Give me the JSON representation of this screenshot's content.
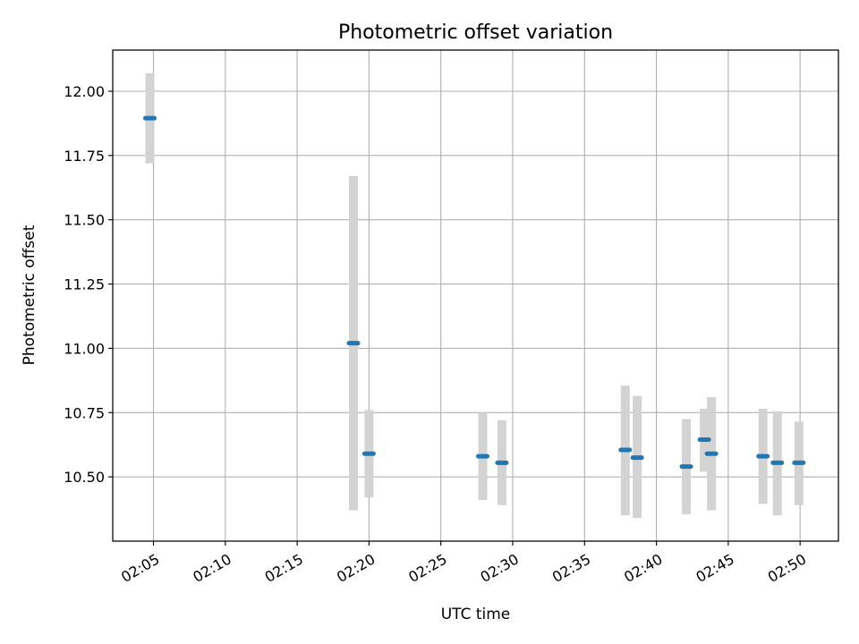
{
  "chart_data": {
    "type": "scatter",
    "title": "Photometric offset variation",
    "xlabel": "UTC time",
    "ylabel": "Photometric offset",
    "x_ticks": [
      "02:05",
      "02:10",
      "02:15",
      "02:20",
      "02:25",
      "02:30",
      "02:35",
      "02:40",
      "02:45",
      "02:50"
    ],
    "y_ticks": [
      "10.50",
      "10.75",
      "11.00",
      "11.25",
      "11.50",
      "11.75",
      "12.00"
    ],
    "xlim": [
      "02:02:10",
      "02:52:40"
    ],
    "ylim": [
      10.25,
      12.16
    ],
    "grid": true,
    "marker_color": "#1f77b4",
    "errorbar_color": "#d3d3d3",
    "points": [
      {
        "x": "02:04:45",
        "y": 11.895,
        "ylow": 11.72,
        "yhigh": 12.07
      },
      {
        "x": "02:18:55",
        "y": 11.02,
        "ylow": 10.37,
        "yhigh": 11.67
      },
      {
        "x": "02:20:00",
        "y": 10.59,
        "ylow": 10.42,
        "yhigh": 10.76
      },
      {
        "x": "02:27:55",
        "y": 10.58,
        "ylow": 10.41,
        "yhigh": 10.75
      },
      {
        "x": "02:29:15",
        "y": 10.555,
        "ylow": 10.39,
        "yhigh": 10.72
      },
      {
        "x": "02:37:50",
        "y": 10.605,
        "ylow": 10.35,
        "yhigh": 10.855
      },
      {
        "x": "02:38:40",
        "y": 10.575,
        "ylow": 10.34,
        "yhigh": 10.815
      },
      {
        "x": "02:42:05",
        "y": 10.54,
        "ylow": 10.355,
        "yhigh": 10.725
      },
      {
        "x": "02:43:20",
        "y": 10.645,
        "ylow": 10.52,
        "yhigh": 10.765
      },
      {
        "x": "02:43:50",
        "y": 10.59,
        "ylow": 10.37,
        "yhigh": 10.81
      },
      {
        "x": "02:47:25",
        "y": 10.58,
        "ylow": 10.395,
        "yhigh": 10.765
      },
      {
        "x": "02:48:25",
        "y": 10.555,
        "ylow": 10.35,
        "yhigh": 10.755
      },
      {
        "x": "02:49:55",
        "y": 10.555,
        "ylow": 10.39,
        "yhigh": 10.715
      }
    ]
  }
}
